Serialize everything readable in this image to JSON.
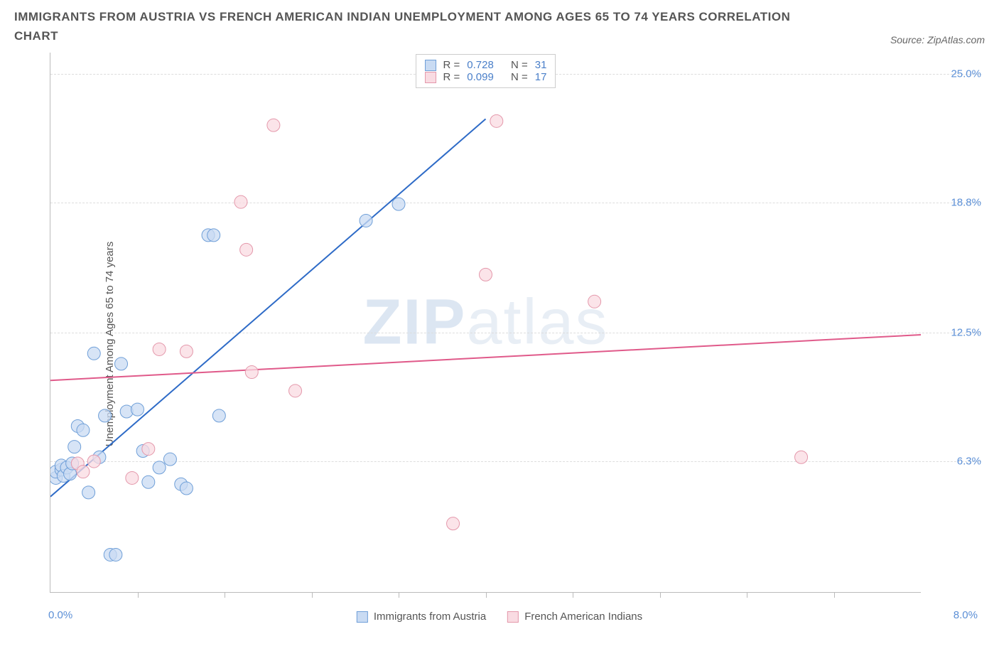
{
  "title": "IMMIGRANTS FROM AUSTRIA VS FRENCH AMERICAN INDIAN UNEMPLOYMENT AMONG AGES 65 TO 74 YEARS CORRELATION CHART",
  "source_label": "Source: ZipAtlas.com",
  "y_axis_label": "Unemployment Among Ages 65 to 74 years",
  "watermark_bold": "ZIP",
  "watermark_light": "atlas",
  "chart": {
    "type": "scatter",
    "xlim": [
      0.0,
      8.0
    ],
    "ylim": [
      0.0,
      26.0
    ],
    "y_ticks": [
      6.3,
      12.5,
      18.8,
      25.0
    ],
    "y_tick_labels": [
      "6.3%",
      "12.5%",
      "18.8%",
      "25.0%"
    ],
    "x_minor_ticks": [
      0.8,
      1.6,
      2.4,
      3.2,
      4.0,
      4.8,
      5.6,
      6.4,
      7.2
    ],
    "x_left_label": "0.0%",
    "x_right_label": "8.0%",
    "background_color": "#ffffff",
    "grid_color": "#dddddd",
    "axis_color": "#bbbbbb",
    "tick_label_color": "#5b8fd6",
    "font_size_axis": 15,
    "marker_radius": 9,
    "marker_stroke_width": 1,
    "series": [
      {
        "name": "Immigrants from Austria",
        "fill": "#c9dbf3",
        "stroke": "#6f9fd8",
        "swatch_fill": "#c9dbf3",
        "swatch_stroke": "#6f9fd8",
        "stats": {
          "R": "0.728",
          "N": "31"
        },
        "trend": {
          "x1": 0.0,
          "y1": 4.6,
          "x2": 4.0,
          "y2": 22.8,
          "color": "#2e6bc7",
          "width": 2
        },
        "points": [
          {
            "x": 0.05,
            "y": 5.5
          },
          {
            "x": 0.05,
            "y": 5.8
          },
          {
            "x": 0.1,
            "y": 5.9
          },
          {
            "x": 0.1,
            "y": 6.1
          },
          {
            "x": 0.12,
            "y": 5.6
          },
          {
            "x": 0.15,
            "y": 6.0
          },
          {
            "x": 0.18,
            "y": 5.7
          },
          {
            "x": 0.2,
            "y": 6.2
          },
          {
            "x": 0.22,
            "y": 7.0
          },
          {
            "x": 0.25,
            "y": 8.0
          },
          {
            "x": 0.3,
            "y": 7.8
          },
          {
            "x": 0.35,
            "y": 4.8
          },
          {
            "x": 0.4,
            "y": 11.5
          },
          {
            "x": 0.45,
            "y": 6.5
          },
          {
            "x": 0.5,
            "y": 8.5
          },
          {
            "x": 0.55,
            "y": 1.8
          },
          {
            "x": 0.6,
            "y": 1.8
          },
          {
            "x": 0.65,
            "y": 11.0
          },
          {
            "x": 0.7,
            "y": 8.7
          },
          {
            "x": 0.8,
            "y": 8.8
          },
          {
            "x": 0.85,
            "y": 6.8
          },
          {
            "x": 0.9,
            "y": 5.3
          },
          {
            "x": 1.0,
            "y": 6.0
          },
          {
            "x": 1.1,
            "y": 6.4
          },
          {
            "x": 1.2,
            "y": 5.2
          },
          {
            "x": 1.25,
            "y": 5.0
          },
          {
            "x": 1.45,
            "y": 17.2
          },
          {
            "x": 1.5,
            "y": 17.2
          },
          {
            "x": 1.55,
            "y": 8.5
          },
          {
            "x": 2.9,
            "y": 17.9
          },
          {
            "x": 3.2,
            "y": 18.7
          }
        ]
      },
      {
        "name": "French American Indians",
        "fill": "#f9dbe2",
        "stroke": "#e498ab",
        "swatch_fill": "#f9dbe2",
        "swatch_stroke": "#e498ab",
        "stats": {
          "R": "0.099",
          "N": "17"
        },
        "trend": {
          "x1": 0.0,
          "y1": 10.2,
          "x2": 8.0,
          "y2": 12.4,
          "color": "#e05a8a",
          "width": 2
        },
        "points": [
          {
            "x": 0.25,
            "y": 6.2
          },
          {
            "x": 0.3,
            "y": 5.8
          },
          {
            "x": 0.4,
            "y": 6.3
          },
          {
            "x": 0.75,
            "y": 5.5
          },
          {
            "x": 0.9,
            "y": 6.9
          },
          {
            "x": 1.0,
            "y": 11.7
          },
          {
            "x": 1.25,
            "y": 11.6
          },
          {
            "x": 1.75,
            "y": 18.8
          },
          {
            "x": 1.8,
            "y": 16.5
          },
          {
            "x": 1.85,
            "y": 10.6
          },
          {
            "x": 2.05,
            "y": 22.5
          },
          {
            "x": 2.25,
            "y": 9.7
          },
          {
            "x": 3.7,
            "y": 3.3
          },
          {
            "x": 4.0,
            "y": 15.3
          },
          {
            "x": 4.1,
            "y": 22.7
          },
          {
            "x": 5.0,
            "y": 14.0
          },
          {
            "x": 6.9,
            "y": 6.5
          }
        ]
      }
    ],
    "legend_labels": [
      "Immigrants from Austria",
      "French American Indians"
    ],
    "stats_labels": {
      "R": "R =",
      "N": "N ="
    }
  }
}
